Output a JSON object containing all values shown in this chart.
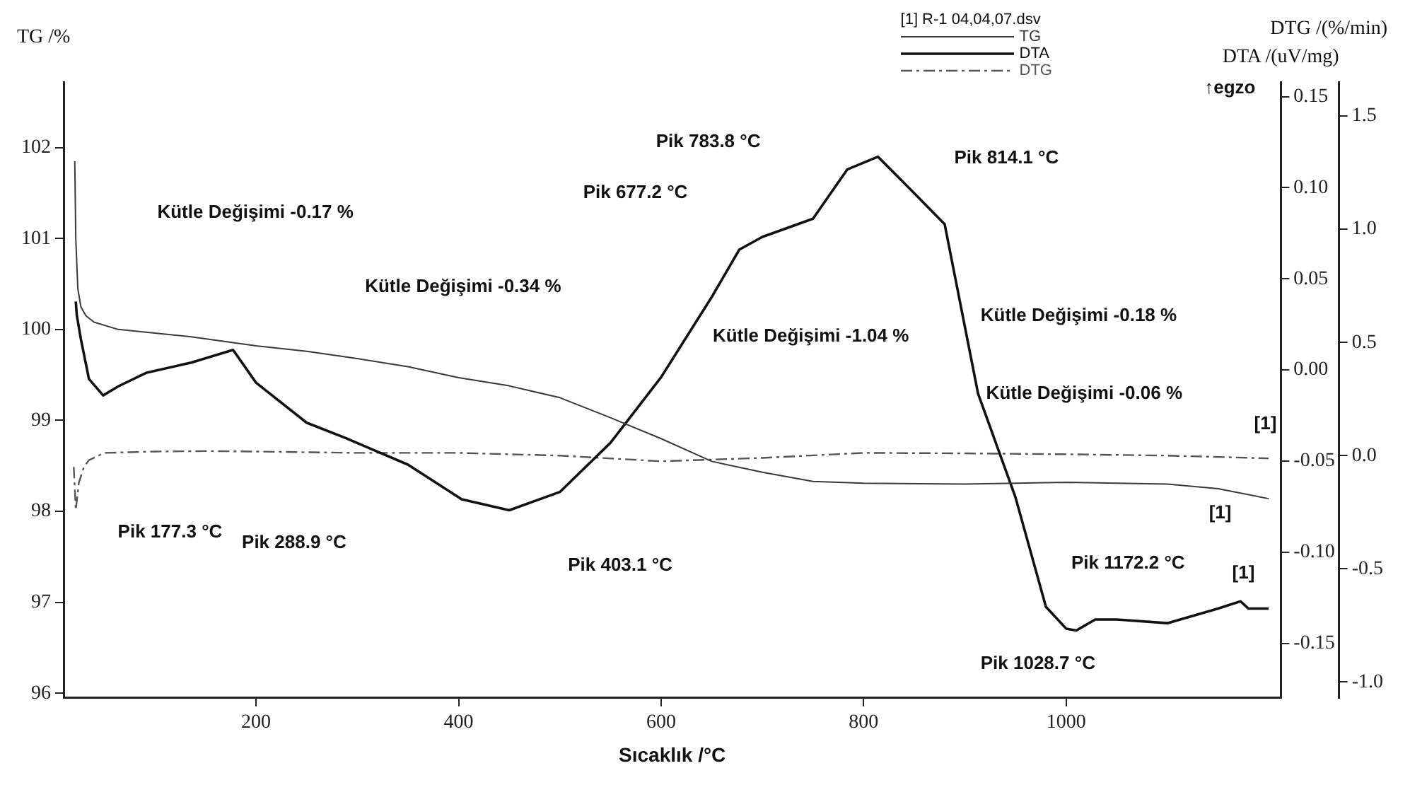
{
  "chart_data": {
    "type": "line",
    "xlabel": "Sıcaklık /°C",
    "ylabel": "TG /%",
    "y2label": "DTA /(uV/mg)",
    "y3label": "DTG /(%/min)",
    "legend_title": "[1] R-1 04,04,07.dsv",
    "legend": "top right",
    "grid": false,
    "xlim": [
      10,
      1212
    ],
    "xticks": [
      200,
      400,
      600,
      800,
      1000
    ],
    "ylim": [
      95.95,
      102.72
    ],
    "yticks": [
      96,
      97,
      98,
      99,
      100,
      101,
      102
    ],
    "y2lim": [
      -0.18,
      0.158
    ],
    "y2ticks": [
      {
        "value": -0.15,
        "label": "-0.15"
      },
      {
        "value": -0.1,
        "label": "-0.10"
      },
      {
        "value": -0.05,
        "label": "-0.05"
      },
      {
        "value": 0,
        "label": "0.00"
      },
      {
        "value": 0.05,
        "label": "0.05"
      },
      {
        "value": 0.1,
        "label": "0.10"
      },
      {
        "value": 0.15,
        "label": "0.15"
      }
    ],
    "y3lim": [
      -1.07,
      1.65
    ],
    "y3ticks": [
      {
        "value": -1,
        "label": "-1.0"
      },
      -0.5,
      {
        "value": 0,
        "label": "0.0"
      },
      0.5,
      {
        "value": 1,
        "label": "1.0"
      },
      1.5
    ],
    "series": [
      {
        "name": "TG",
        "color": "#3a3a3a",
        "line_style": "solid",
        "x": [
          21,
          22,
          24,
          27,
          32,
          40,
          64,
          100,
          136,
          200,
          250,
          300,
          350,
          400,
          450,
          500,
          550,
          600,
          650,
          700,
          750,
          800,
          900,
          1000,
          1050,
          1100,
          1150,
          1200
        ],
        "values": [
          101.85,
          101.0,
          100.45,
          100.25,
          100.15,
          100.08,
          100.0,
          99.96,
          99.92,
          99.82,
          99.76,
          99.68,
          99.59,
          99.47,
          99.38,
          99.25,
          99.03,
          98.8,
          98.55,
          98.43,
          98.33,
          98.31,
          98.3,
          98.32,
          98.31,
          98.3,
          98.25,
          98.14
        ]
      },
      {
        "name": "DTA",
        "color": "#111111",
        "line_style": "solid",
        "axis": "y2",
        "x": [
          22,
          23,
          27,
          35,
          49,
          64,
          92,
          136,
          177.3,
          200,
          250,
          288.9,
          350,
          403.1,
          450,
          500,
          550,
          600,
          650,
          677.2,
          700,
          750,
          783.8,
          814.1,
          850,
          880,
          913,
          950,
          980,
          1000,
          1010,
          1028.7,
          1050,
          1100,
          1150,
          1172.2,
          1180,
          1200
        ],
        "values": [
          0.0375,
          0.03,
          0.017,
          -0.005,
          -0.014,
          -0.009,
          -0.0015,
          0.004,
          0.011,
          -0.007,
          -0.029,
          -0.0375,
          -0.052,
          -0.071,
          -0.077,
          -0.067,
          -0.04,
          -0.004,
          0.04,
          0.066,
          0.073,
          0.083,
          0.11,
          0.117,
          0.097,
          0.08,
          -0.013,
          -0.07,
          -0.13,
          -0.142,
          -0.143,
          -0.137,
          -0.137,
          -0.139,
          -0.131,
          -0.127,
          -0.131,
          -0.131
        ]
      },
      {
        "name": "DTG",
        "color": "#555555",
        "line_style": "dashed",
        "axis": "y3",
        "x": [
          20,
          22,
          25,
          30,
          35,
          50,
          100,
          150,
          200,
          300,
          400,
          500,
          600,
          700,
          800,
          900,
          1000,
          1100,
          1200
        ],
        "values": [
          -0.05,
          -0.24,
          -0.12,
          -0.05,
          -0.02,
          0.012,
          0.018,
          0.02,
          0.018,
          0.012,
          0.012,
          0.0,
          -0.025,
          -0.01,
          0.012,
          0.01,
          0.006,
          0.0,
          -0.012
        ]
      }
    ],
    "annotations": [
      "Kütle Değişimi -0.17 %",
      "Kütle Değişimi -0.34 %",
      "Kütle Değişimi -1.04 %",
      "Kütle Değişimi -0.18 %",
      "Kütle Değişimi -0.06 %",
      "Pik 177.3 °C",
      "Pik 288.9 °C",
      "Pik 403.1 °C",
      "Pik 677.2 °C",
      "Pik 783.8 °C",
      "Pik 814.1 °C",
      "Pik 1028.7 °C",
      "Pik 1172.2 °C",
      "↑egzo",
      "[1]",
      "[1]",
      "[1]"
    ]
  }
}
